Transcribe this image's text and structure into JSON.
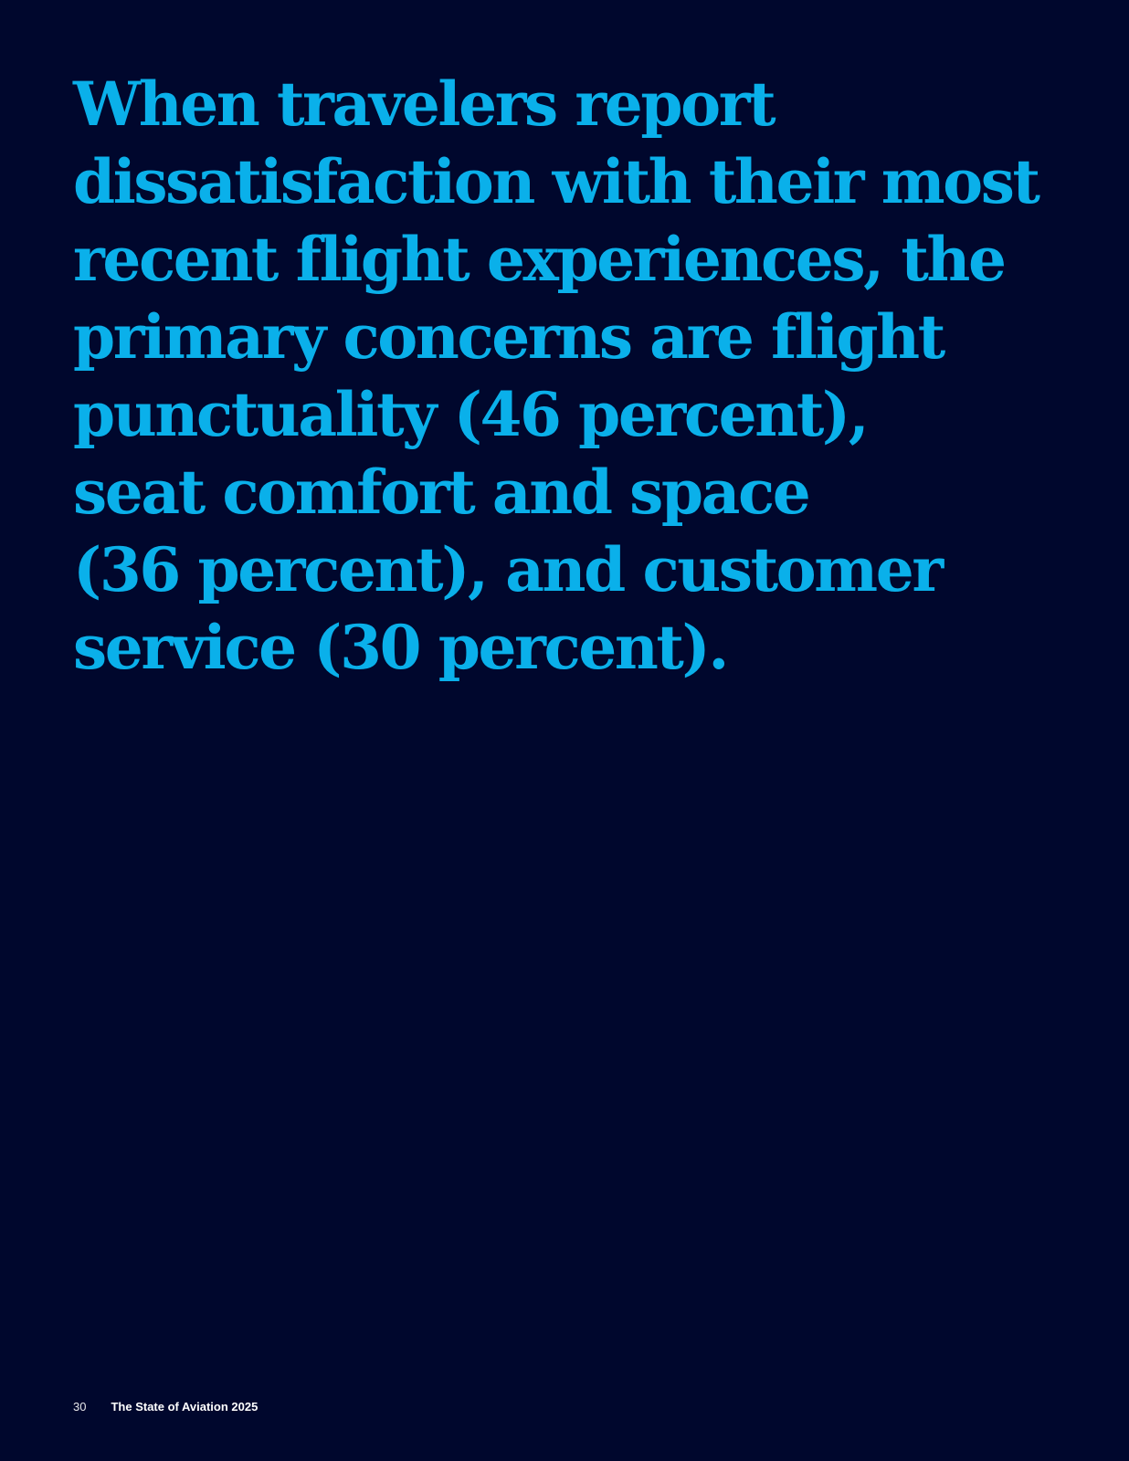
{
  "quote": {
    "lines": [
      "When travelers report",
      "dissatisfaction with their most",
      "recent flight experiences, the",
      "primary concerns are flight",
      "punctuality (46 percent),",
      "seat comfort and space",
      "(36 percent), and customer",
      "service (30 percent)."
    ],
    "color": "#0ab0ea"
  },
  "footer": {
    "page_number": "30",
    "publication_title": "The State of Aviation 2025"
  },
  "colors": {
    "background": "#00072d",
    "footer_text": "#ffffff"
  }
}
